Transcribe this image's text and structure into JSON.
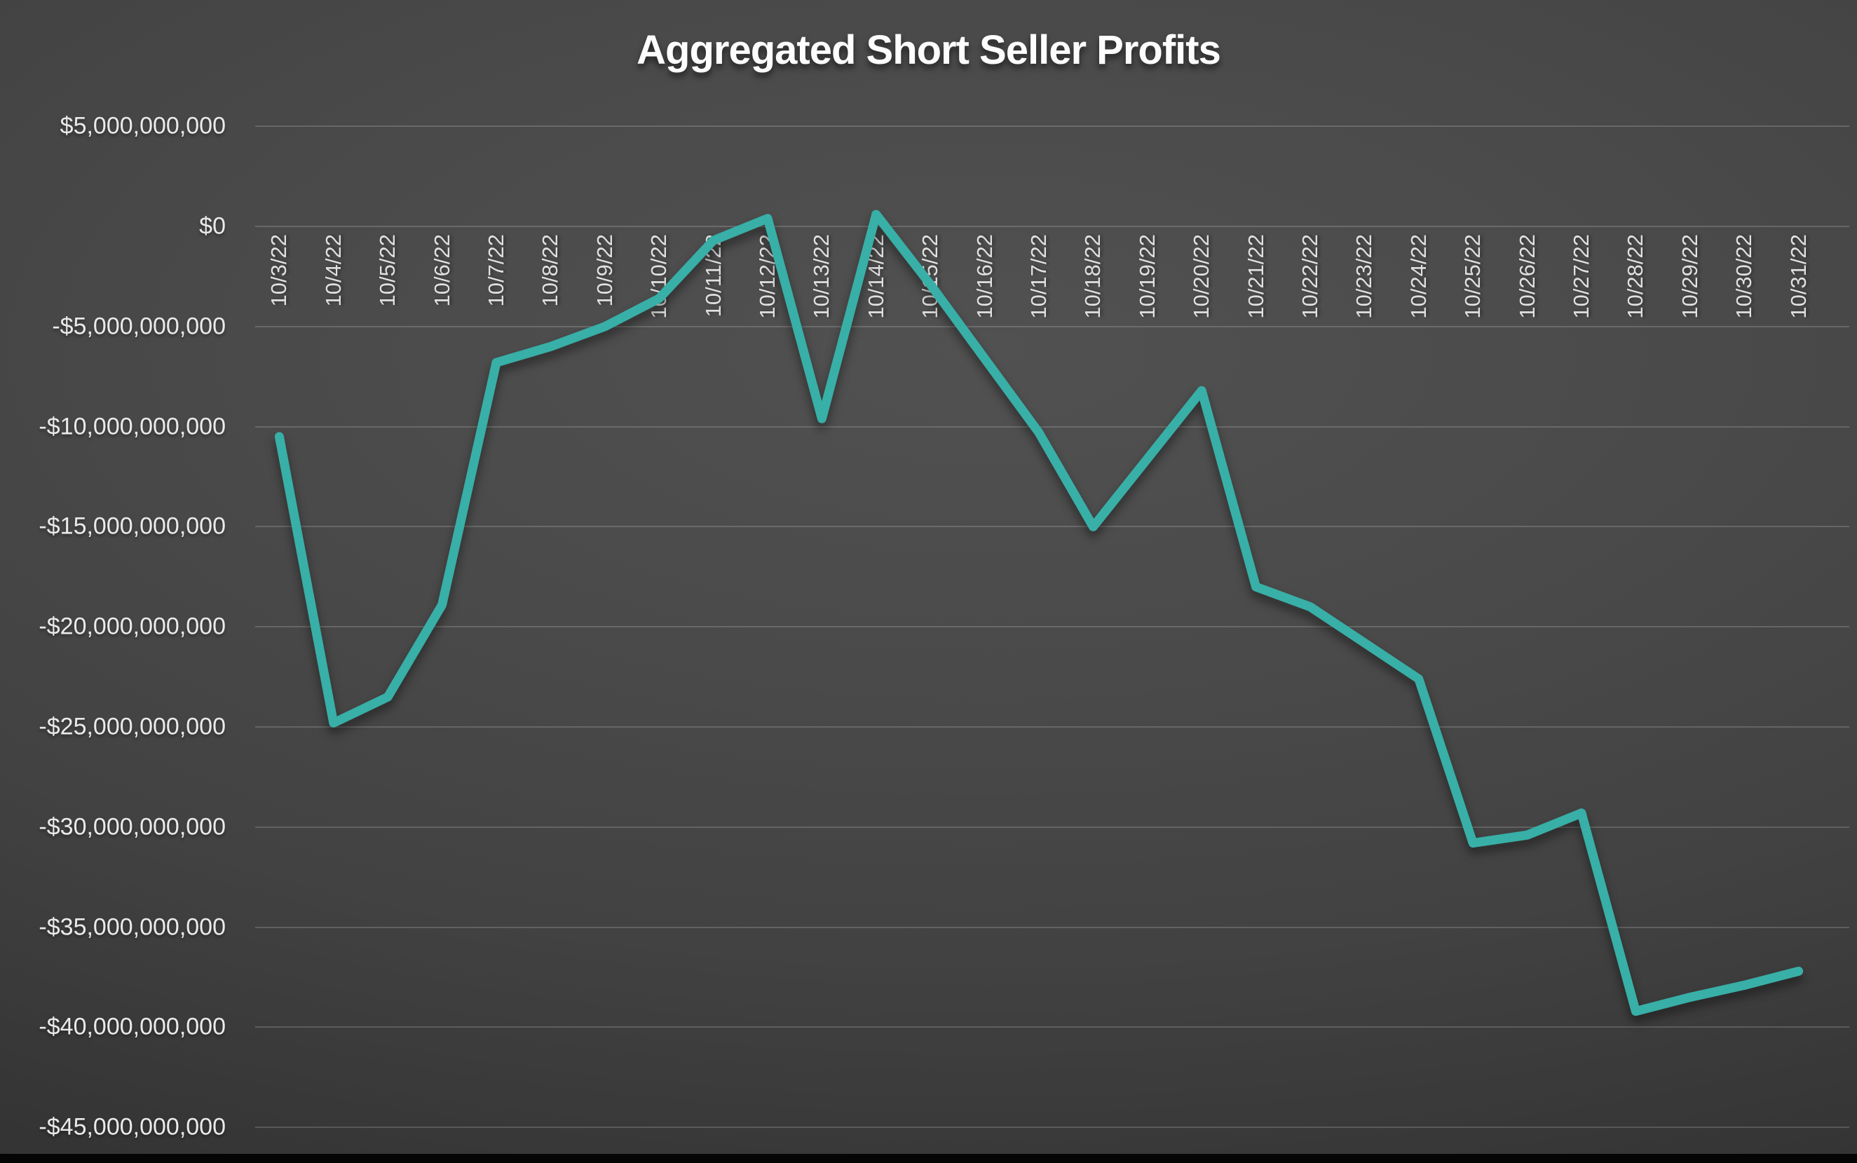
{
  "page": {
    "title": "Aggregated Short Seller Profits"
  },
  "colors": {
    "line": "#38AFA7",
    "background_center": "#4a4a4a",
    "background_edge": "#2b2b2b",
    "gridline": "rgba(255,255,255,0.17)",
    "label_text": "#eaeaea",
    "title_text": "#fdfdfd",
    "bottom_bar": "#050505"
  },
  "chart_data": {
    "type": "line",
    "title": "Aggregated Short Seller Profits",
    "xlabel": "",
    "ylabel": "",
    "grid": true,
    "legend": false,
    "line_color": "#38AFA7",
    "ylim": [
      -45000000000,
      5000000000
    ],
    "y_ticks": [
      {
        "label": "$5,000,000,000",
        "value": 5000000000
      },
      {
        "label": "$0",
        "value": 0
      },
      {
        "label": "-$5,000,000,000",
        "value": -5000000000
      },
      {
        "label": "-$10,000,000,000",
        "value": -10000000000
      },
      {
        "label": "-$15,000,000,000",
        "value": -15000000000
      },
      {
        "label": "-$20,000,000,000",
        "value": -20000000000
      },
      {
        "label": "-$25,000,000,000",
        "value": -25000000000
      },
      {
        "label": "-$30,000,000,000",
        "value": -30000000000
      },
      {
        "label": "-$35,000,000,000",
        "value": -35000000000
      },
      {
        "label": "-$40,000,000,000",
        "value": -40000000000
      },
      {
        "label": "-$45,000,000,000",
        "value": -45000000000
      }
    ],
    "categories": [
      "10/3/22",
      "10/4/22",
      "10/5/22",
      "10/6/22",
      "10/7/22",
      "10/8/22",
      "10/9/22",
      "10/10/22",
      "10/11/22",
      "10/12/22",
      "10/13/22",
      "10/14/22",
      "10/15/22",
      "10/16/22",
      "10/17/22",
      "10/18/22",
      "10/19/22",
      "10/20/22",
      "10/21/22",
      "10/22/22",
      "10/23/22",
      "10/24/22",
      "10/25/22",
      "10/26/22",
      "10/27/22",
      "10/28/22",
      "10/29/22",
      "10/30/22",
      "10/31/22"
    ],
    "values": [
      -10500000000,
      -24800000000,
      -23500000000,
      -18900000000,
      -6800000000,
      -6000000000,
      -5000000000,
      -3600000000,
      -700000000,
      400000000,
      -9600000000,
      600000000,
      -2900000000,
      -6600000000,
      -10300000000,
      -15000000000,
      -11600000000,
      -8200000000,
      -18000000000,
      -19000000000,
      -20800000000,
      -22600000000,
      -30800000000,
      -30400000000,
      -29300000000,
      -39200000000,
      -38500000000,
      -37900000000,
      -37200000000
    ]
  }
}
